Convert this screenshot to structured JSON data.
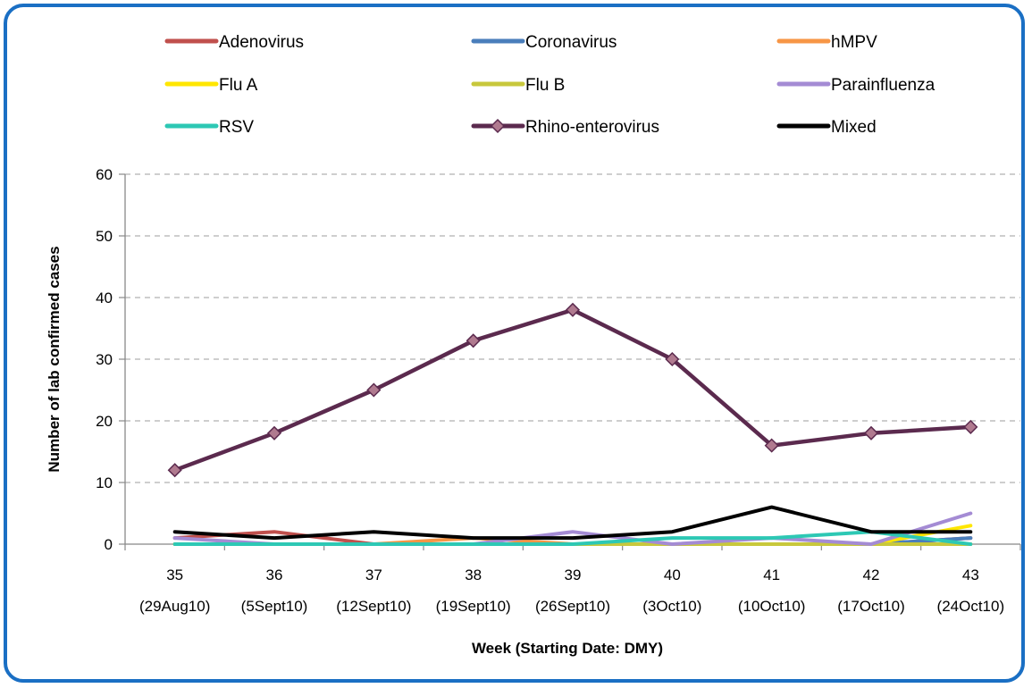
{
  "chart_data": {
    "type": "line",
    "title": "",
    "xlabel": "Week (Starting Date: DMY)",
    "ylabel": "Number of lab confirmed cases",
    "ylim": [
      0,
      60
    ],
    "yticks": [
      0,
      10,
      20,
      30,
      40,
      50,
      60
    ],
    "grid": "horizontal dashed",
    "legend_position": "top",
    "categories": [
      {
        "week": "35",
        "date": "(29Aug10)"
      },
      {
        "week": "36",
        "date": "(5Sept10)"
      },
      {
        "week": "37",
        "date": "(12Sept10)"
      },
      {
        "week": "38",
        "date": "(19Sept10)"
      },
      {
        "week": "39",
        "date": "(26Sept10)"
      },
      {
        "week": "40",
        "date": "(3Oct10)"
      },
      {
        "week": "41",
        "date": "(10Oct10)"
      },
      {
        "week": "42",
        "date": "(17Oct10)"
      },
      {
        "week": "43",
        "date": "(24Oct10)"
      }
    ],
    "series": [
      {
        "name": "Adenovirus",
        "color": "#c0504d",
        "values": [
          1,
          2,
          0,
          0,
          0,
          0,
          0,
          0,
          1
        ]
      },
      {
        "name": "Coronavirus",
        "color": "#4a7ebb",
        "values": [
          0,
          0,
          0,
          0,
          0,
          0,
          0,
          0,
          1
        ]
      },
      {
        "name": "hMPV",
        "color": "#f79646",
        "values": [
          0,
          0,
          0,
          1,
          0,
          0,
          0,
          0,
          0
        ]
      },
      {
        "name": "Flu A",
        "color": "#ffe600",
        "values": [
          0,
          0,
          0,
          0,
          0,
          0,
          0,
          0,
          3
        ]
      },
      {
        "name": "Flu B",
        "color": "#c8c83c",
        "values": [
          0,
          0,
          0,
          0,
          0,
          0,
          0,
          0,
          0
        ]
      },
      {
        "name": "Parainfluenza",
        "color": "#a48bd4",
        "values": [
          1,
          0,
          0,
          0,
          2,
          0,
          1,
          0,
          5
        ]
      },
      {
        "name": "RSV",
        "color": "#2dc8b4",
        "values": [
          0,
          0,
          0,
          0,
          0,
          1,
          1,
          2,
          0
        ]
      },
      {
        "name": "Rhino-enterovirus",
        "color": "#5b2a4e",
        "marker": "diamond",
        "values": [
          12,
          18,
          25,
          33,
          38,
          30,
          16,
          18,
          19
        ]
      },
      {
        "name": "Mixed",
        "color": "#000000",
        "values": [
          2,
          1,
          2,
          1,
          1,
          2,
          6,
          2,
          2
        ]
      }
    ]
  }
}
